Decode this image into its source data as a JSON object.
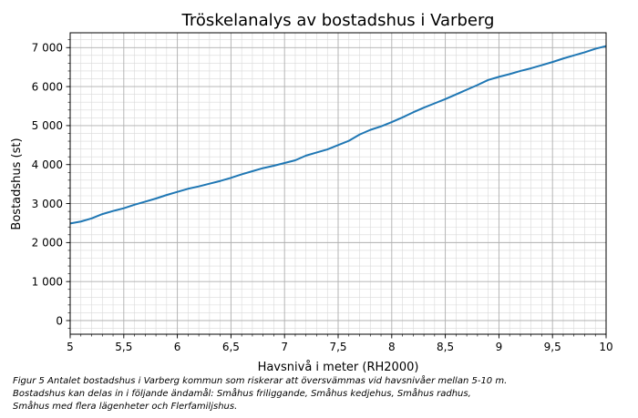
{
  "chart_data": {
    "type": "line",
    "title": "Tröskelanalys av bostadshus i Varberg",
    "xlabel": "Havsnivå i meter (RH2000)",
    "ylabel": "Bostadshus (st)",
    "xlim": [
      5,
      10
    ],
    "ylim": [
      -350,
      7380
    ],
    "grid": "major and minor",
    "xticks": [
      5,
      5.5,
      6,
      6.5,
      7,
      7.5,
      8,
      8.5,
      9,
      9.5,
      10
    ],
    "xtick_labels": [
      "5",
      "5,5",
      "6",
      "6,5",
      "7",
      "7,5",
      "8",
      "8,5",
      "9",
      "9,5",
      "10"
    ],
    "yticks": [
      0,
      1000,
      2000,
      3000,
      4000,
      5000,
      6000,
      7000
    ],
    "ytick_labels": [
      "0",
      "1 000",
      "2 000",
      "3 000",
      "4 000",
      "5 000",
      "6 000",
      "7 000"
    ],
    "series": [
      {
        "color": "#1f77b4",
        "x": [
          5.0,
          5.1,
          5.2,
          5.3,
          5.4,
          5.5,
          5.6,
          5.7,
          5.8,
          5.9,
          6.0,
          6.1,
          6.2,
          6.3,
          6.4,
          6.5,
          6.6,
          6.7,
          6.8,
          6.9,
          7.0,
          7.1,
          7.2,
          7.3,
          7.4,
          7.5,
          7.6,
          7.7,
          7.8,
          7.9,
          8.0,
          8.1,
          8.2,
          8.3,
          8.4,
          8.5,
          8.6,
          8.7,
          8.8,
          8.9,
          9.0,
          9.1,
          9.2,
          9.3,
          9.4,
          9.5,
          9.6,
          9.7,
          9.8,
          9.9,
          10.0
        ],
        "y": [
          2490,
          2540,
          2620,
          2730,
          2810,
          2880,
          2970,
          3050,
          3130,
          3220,
          3300,
          3380,
          3440,
          3510,
          3580,
          3660,
          3750,
          3830,
          3910,
          3970,
          4040,
          4110,
          4230,
          4310,
          4390,
          4500,
          4610,
          4770,
          4890,
          4980,
          5090,
          5210,
          5340,
          5460,
          5570,
          5680,
          5800,
          5920,
          6040,
          6170,
          6250,
          6320,
          6400,
          6470,
          6550,
          6630,
          6720,
          6800,
          6880,
          6970,
          7040
        ]
      }
    ]
  },
  "caption": {
    "line1": "Figur 5 Antalet bostadshus i Varberg kommun som riskerar att översvämmas vid havsnivåer mellan 5-10 m.",
    "line2": "Bostadshus kan delas in i följande ändamål: Småhus friliggande, Småhus kedjehus, Småhus radhus,",
    "line3": "Småhus med flera lägenheter och Flerfamiljshus."
  }
}
